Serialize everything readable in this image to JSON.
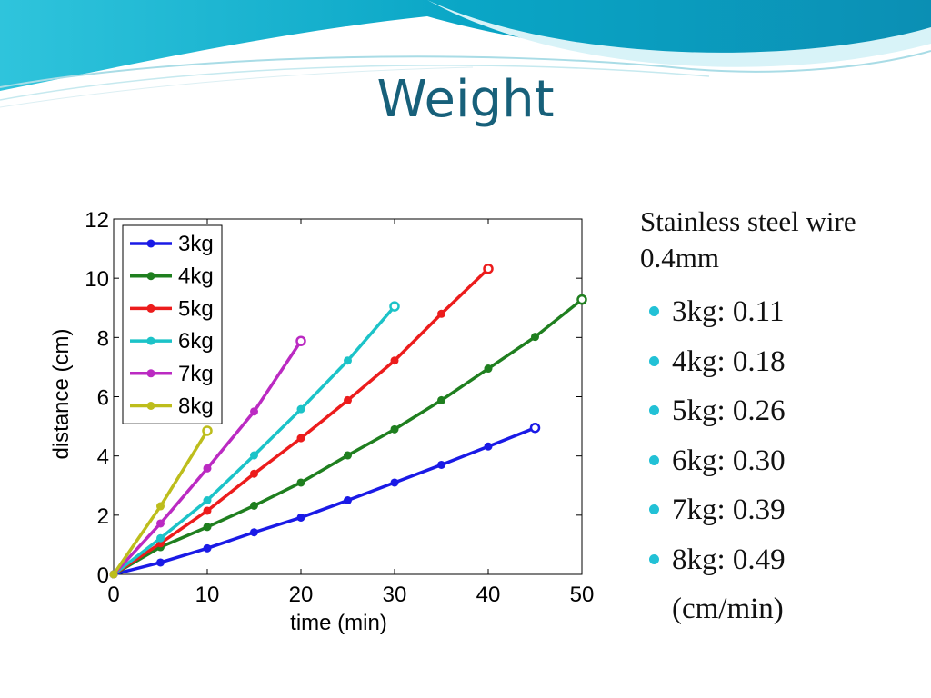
{
  "slide": {
    "title": "Weight",
    "side_heading": "Stainless steel wire 0.4mm",
    "bullets": [
      "3kg: 0.11",
      "4kg: 0.18",
      "5kg: 0.26",
      "6kg: 0.30",
      "7kg: 0.39",
      "8kg: 0.49"
    ],
    "unit_note": "(cm/min)",
    "theme_colors": {
      "title": "#17607a",
      "bullet": "#22c1d6",
      "banner": "#0fa7c4"
    }
  },
  "chart_data": {
    "type": "line",
    "title": "",
    "xlabel": "time (min)",
    "ylabel": "distance (cm)",
    "xlim": [
      0,
      50
    ],
    "ylim": [
      0,
      12
    ],
    "xticks": [
      0,
      10,
      20,
      30,
      40,
      50
    ],
    "yticks": [
      0,
      2,
      4,
      6,
      8,
      10,
      12
    ],
    "grid": false,
    "legend_position": "top-left",
    "series": [
      {
        "name": "3kg",
        "color": "#1a1ae6",
        "x": [
          0,
          5,
          10,
          15,
          20,
          25,
          30,
          35,
          40,
          45
        ],
        "y": [
          0,
          0.4,
          0.88,
          1.42,
          1.92,
          2.5,
          3.1,
          3.7,
          4.32,
          4.95
        ]
      },
      {
        "name": "4kg",
        "color": "#1f7f1f",
        "x": [
          0,
          5,
          10,
          15,
          20,
          25,
          30,
          35,
          40,
          45,
          50
        ],
        "y": [
          0,
          0.92,
          1.6,
          2.32,
          3.1,
          4.02,
          4.9,
          5.88,
          6.95,
          8.02,
          9.28
        ]
      },
      {
        "name": "5kg",
        "color": "#ec1c1c",
        "x": [
          0,
          5,
          10,
          15,
          20,
          25,
          30,
          35,
          40
        ],
        "y": [
          0,
          1.05,
          2.15,
          3.4,
          4.6,
          5.88,
          7.22,
          8.8,
          10.32
        ]
      },
      {
        "name": "6kg",
        "color": "#1cc3c8",
        "x": [
          0,
          5,
          10,
          15,
          20,
          25,
          30
        ],
        "y": [
          0,
          1.22,
          2.5,
          4.02,
          5.58,
          7.22,
          9.05
        ]
      },
      {
        "name": "7kg",
        "color": "#bb2ac2",
        "x": [
          0,
          5,
          10,
          15,
          20
        ],
        "y": [
          0,
          1.72,
          3.58,
          5.5,
          7.88
        ]
      },
      {
        "name": "8kg",
        "color": "#bdbd1c",
        "x": [
          0,
          5,
          10
        ],
        "y": [
          0,
          2.3,
          4.85
        ]
      }
    ]
  }
}
